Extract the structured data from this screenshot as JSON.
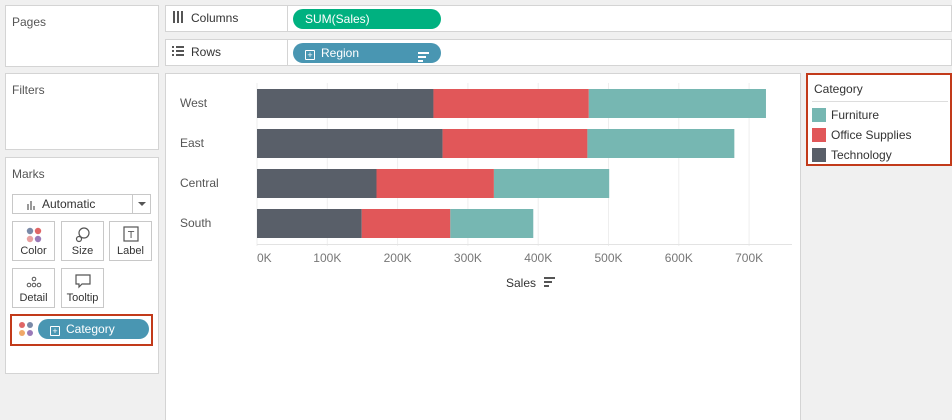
{
  "panels": {
    "pages_title": "Pages",
    "filters_title": "Filters",
    "marks_title": "Marks"
  },
  "shelves": {
    "columns_label": "Columns",
    "columns_pill": "SUM(Sales)",
    "rows_label": "Rows",
    "rows_pill": "Region"
  },
  "marks": {
    "type": "Automatic",
    "buttons": {
      "color": "Color",
      "size": "Size",
      "label": "Label",
      "detail": "Detail",
      "tooltip": "Tooltip"
    },
    "category_pill": "Category"
  },
  "legend": {
    "title": "Category",
    "items": [
      {
        "label": "Furniture",
        "color": "#76b7b2"
      },
      {
        "label": "Office Supplies",
        "color": "#e15759"
      },
      {
        "label": "Technology",
        "color": "#595f69"
      }
    ]
  },
  "chart_data": {
    "type": "bar",
    "orientation": "horizontal",
    "stacked": true,
    "categories": [
      "West",
      "East",
      "Central",
      "South"
    ],
    "series": [
      {
        "name": "Technology",
        "values": [
          251000,
          264000,
          170000,
          149000
        ]
      },
      {
        "name": "Office Supplies",
        "values": [
          221000,
          206000,
          167000,
          126000
        ]
      },
      {
        "name": "Furniture",
        "values": [
          252000,
          209000,
          164000,
          118000
        ]
      }
    ],
    "xlabel": "Sales",
    "xlim": [
      0,
      760000
    ],
    "xticks": [
      "0K",
      "100K",
      "200K",
      "300K",
      "400K",
      "500K",
      "600K",
      "700K"
    ],
    "grid": "vertical"
  }
}
